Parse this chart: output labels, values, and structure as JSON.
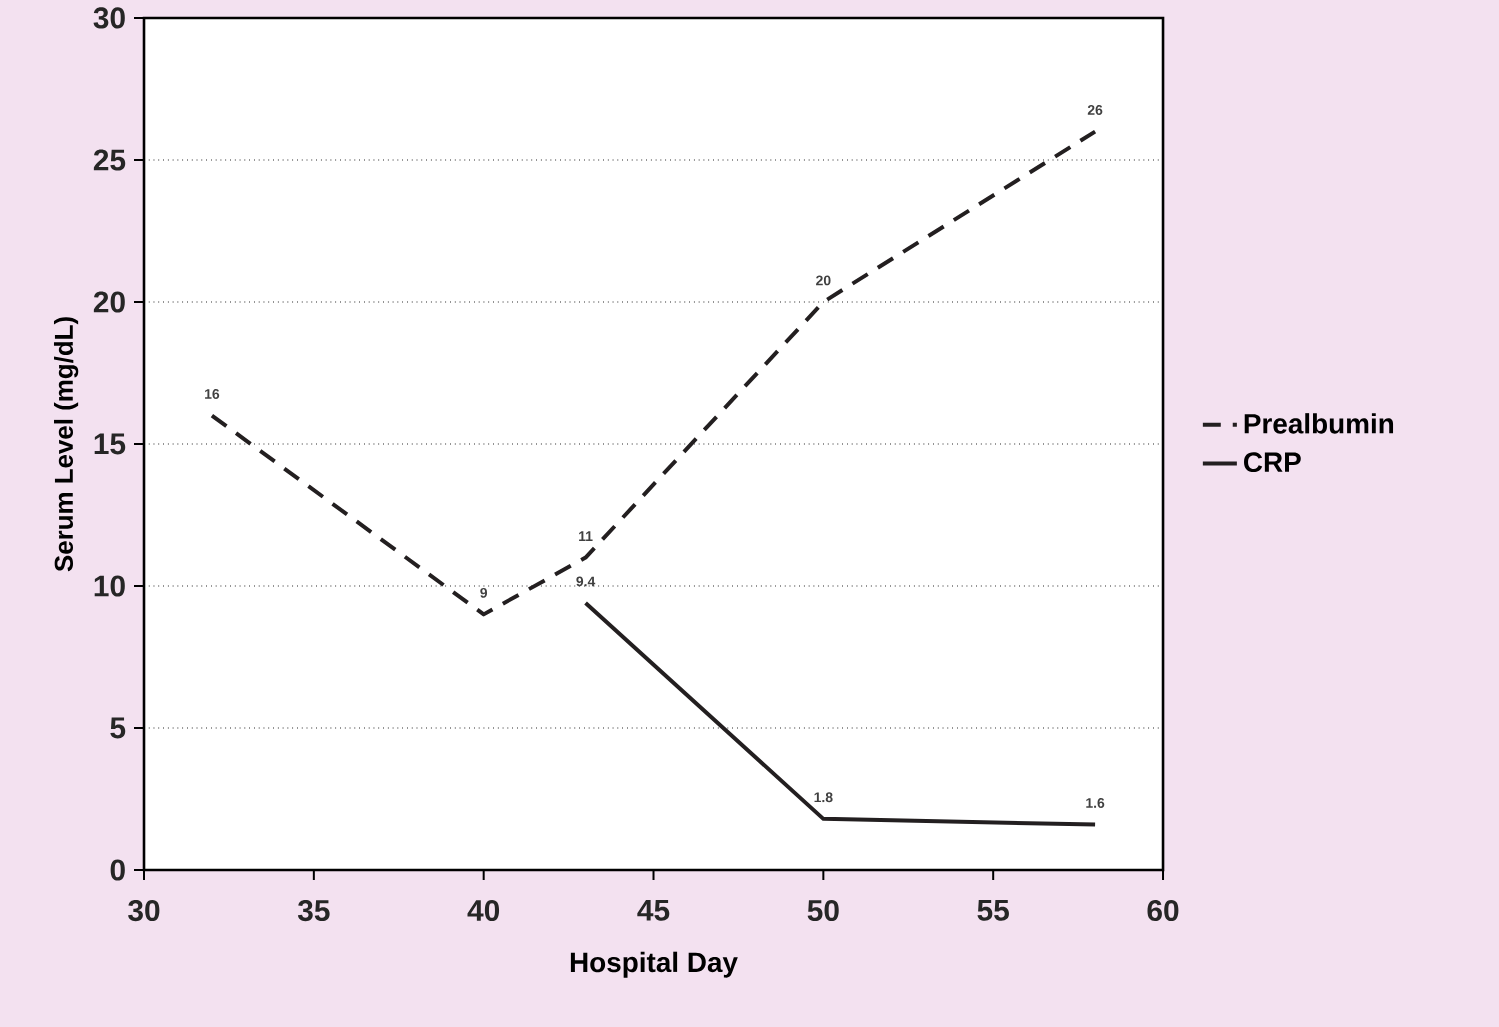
{
  "chart_data": {
    "type": "line",
    "xlabel": "Hospital Day",
    "ylabel": "Serum Level (mg/dL)",
    "series": [
      {
        "name": "Prealbumin",
        "color": "#231f20",
        "line_style": "dashed",
        "x": [
          32,
          40,
          43,
          50,
          58
        ],
        "values": [
          16,
          9,
          11,
          20,
          26
        ]
      },
      {
        "name": "CRP",
        "color": "#231f20",
        "line_style": "solid",
        "x": [
          43,
          50,
          58
        ],
        "values": [
          9.4,
          1.8,
          1.6
        ]
      }
    ],
    "xlim": [
      30,
      60
    ],
    "xticks": [
      30,
      35,
      40,
      45,
      50,
      55,
      60
    ],
    "ylim": [
      0,
      30
    ],
    "yticks": [
      0,
      5,
      10,
      15,
      20,
      25,
      30
    ],
    "grid": "y",
    "legend": "right",
    "marker": "none",
    "data_labels": true
  }
}
